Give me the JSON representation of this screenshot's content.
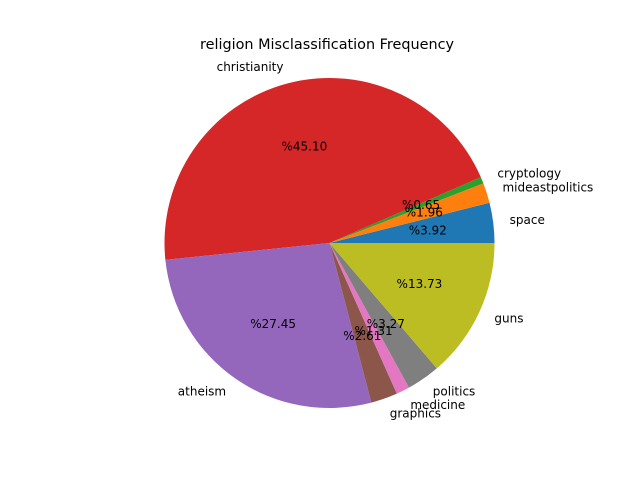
{
  "chart_data": {
    "type": "pie",
    "title": "religion Misclassification Frequency",
    "start_angle_deg": 0,
    "direction": "counterclockwise",
    "slices": [
      {
        "label": "space",
        "percent_label": "%3.92",
        "value": 3.92,
        "color": "#1f77b4"
      },
      {
        "label": "mideastpolitics",
        "percent_label": "%1.96",
        "value": 1.96,
        "color": "#ff7f0e"
      },
      {
        "label": "cryptology",
        "percent_label": "%0.65",
        "value": 0.65,
        "color": "#2ca02c"
      },
      {
        "label": "christianity",
        "percent_label": "%45.10",
        "value": 45.1,
        "color": "#d62728"
      },
      {
        "label": "atheism",
        "percent_label": "%27.45",
        "value": 27.45,
        "color": "#9467bd"
      },
      {
        "label": "graphics",
        "percent_label": "%2.61",
        "value": 2.61,
        "color": "#8c564b"
      },
      {
        "label": "medicine",
        "percent_label": "%1.31",
        "value": 1.31,
        "color": "#e377c2"
      },
      {
        "label": "politics",
        "percent_label": "%3.27",
        "value": 3.27,
        "color": "#7f7f7f"
      },
      {
        "label": "guns",
        "percent_label": "%13.73",
        "value": 13.73,
        "color": "#bcbd22"
      }
    ]
  }
}
